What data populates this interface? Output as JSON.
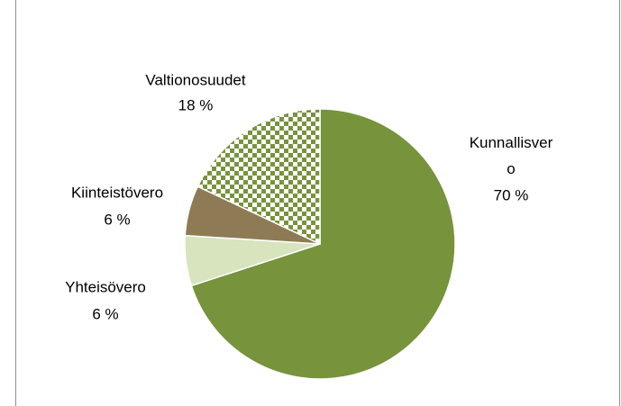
{
  "chart_data": {
    "type": "pie",
    "categories": [
      "Kunnallisvero",
      "Yhteisövero",
      "Kiinteistövero",
      "Valtionosuudet"
    ],
    "values": [
      70,
      6,
      6,
      18
    ],
    "value_labels": [
      "70 %",
      "6 %",
      "6 %",
      "18 %"
    ],
    "colors": [
      "#77933c",
      "#d7e4bd",
      "#8e7b55",
      "#77933c"
    ],
    "patterns": [
      null,
      null,
      null,
      "checker"
    ]
  }
}
